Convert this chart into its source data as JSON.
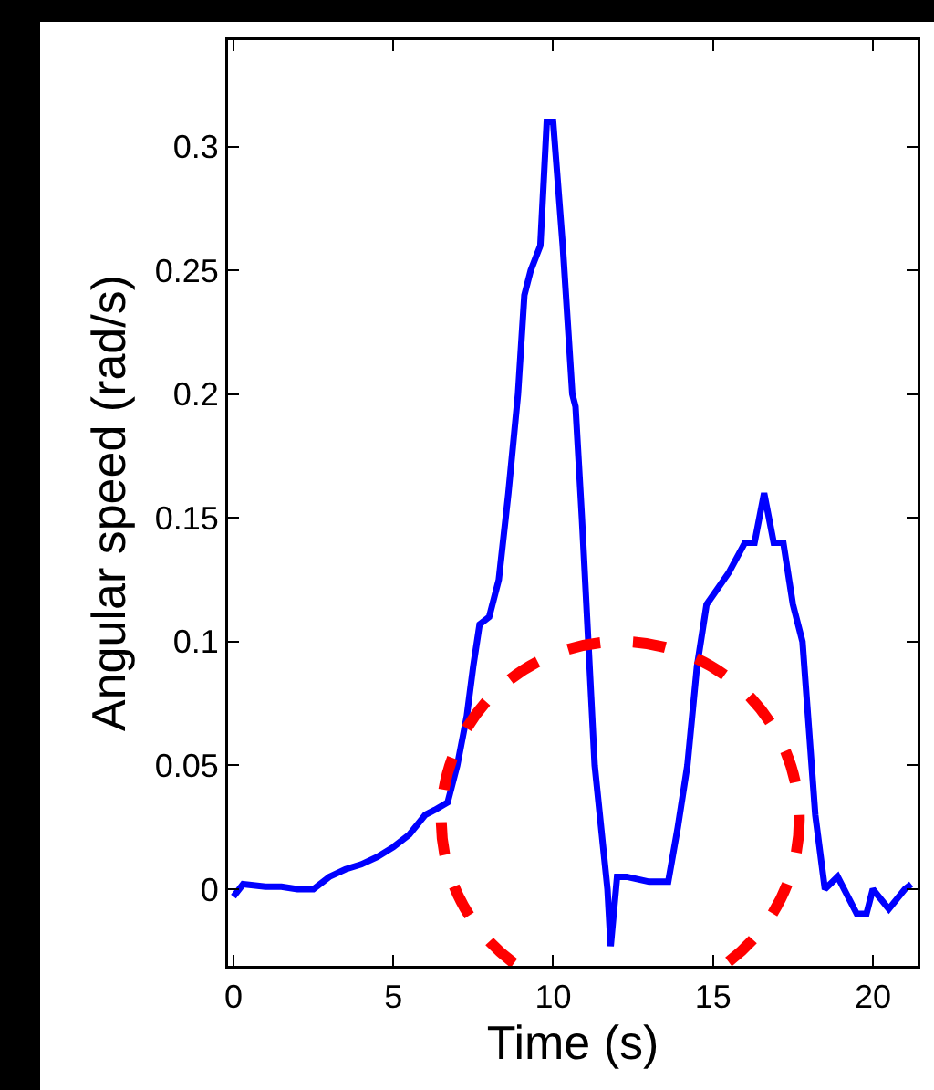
{
  "chart_data": {
    "type": "line",
    "xlabel": "Time (s)",
    "ylabel": "Angular speed (rad/s)",
    "xlim": [
      -0.17,
      21.4
    ],
    "ylim": [
      -0.031,
      0.343
    ],
    "xticks": [
      0,
      5,
      10,
      15,
      20
    ],
    "yticks": [
      0,
      0.05,
      0.1,
      0.15,
      0.2,
      0.25,
      0.3
    ],
    "grid": false,
    "marker": "none",
    "line_style": "solid",
    "series": [
      {
        "color": "#0000ff",
        "x": [
          0,
          0.3,
          1,
          1.5,
          2,
          2.5,
          3,
          3.5,
          4,
          4.5,
          5,
          5.5,
          6,
          6.3,
          6.7,
          7,
          7.3,
          7.5,
          7.7,
          8,
          8.3,
          8.6,
          8.9,
          9.1,
          9.3,
          9.6,
          9.8,
          10,
          10.3,
          10.6,
          10.7,
          10.9,
          11.3,
          11.7,
          11.8,
          12,
          12.3,
          13,
          13.6,
          13.9,
          14.2,
          14.5,
          14.8,
          15.5,
          16,
          16.3,
          16.6,
          16.9,
          17.2,
          17.5,
          17.8,
          18.2,
          18.5,
          18.9,
          19.5,
          19.8,
          20,
          20.5,
          21,
          21.2
        ],
        "values": [
          -0.003,
          0.002,
          0.001,
          0.001,
          0,
          0,
          0.005,
          0.008,
          0.01,
          0.013,
          0.017,
          0.022,
          0.03,
          0.032,
          0.035,
          0.05,
          0.07,
          0.09,
          0.107,
          0.11,
          0.125,
          0.16,
          0.2,
          0.24,
          0.25,
          0.26,
          0.31,
          0.31,
          0.26,
          0.2,
          0.195,
          0.15,
          0.05,
          0,
          -0.023,
          0.005,
          0.005,
          0.003,
          0.003,
          0.025,
          0.05,
          0.09,
          0.115,
          0.128,
          0.14,
          0.14,
          0.16,
          0.14,
          0.14,
          0.115,
          0.1,
          0.03,
          0,
          0.005,
          -0.01,
          -0.01,
          0,
          -0.008,
          0,
          0.002
        ]
      }
    ]
  }
}
